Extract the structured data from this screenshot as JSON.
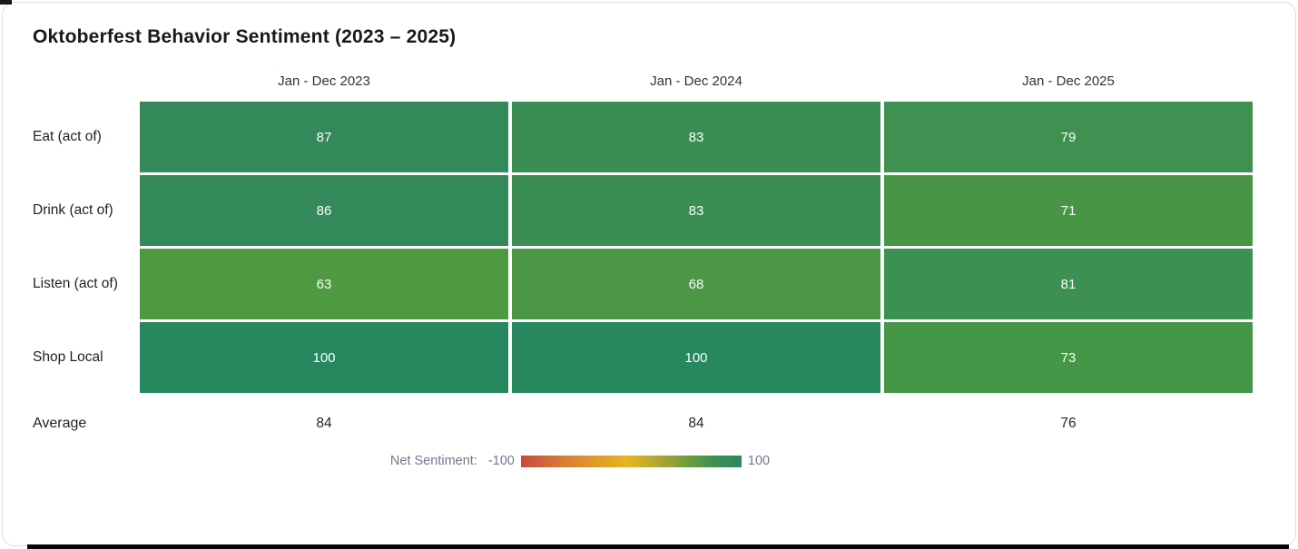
{
  "title": "Oktoberfest Behavior Sentiment (2023 – 2025)",
  "chart_data": {
    "type": "heatmap",
    "title": "Oktoberfest Behavior Sentiment (2023 – 2025)",
    "columns": [
      "Jan - Dec 2023",
      "Jan - Dec 2024",
      "Jan - Dec 2025"
    ],
    "rows": [
      {
        "label": "Eat (act of)",
        "values": [
          87,
          83,
          79
        ],
        "colors": [
          "#33895a",
          "#3a8e53",
          "#3e9150"
        ]
      },
      {
        "label": "Drink (act of)",
        "values": [
          86,
          83,
          71
        ],
        "colors": [
          "#34895a",
          "#3a8e53",
          "#489645"
        ]
      },
      {
        "label": "Listen (act of)",
        "values": [
          63,
          68,
          81
        ],
        "colors": [
          "#4f9a41",
          "#4b9745",
          "#3c9052"
        ]
      },
      {
        "label": "Shop Local",
        "values": [
          100,
          100,
          73
        ],
        "colors": [
          "#27885f",
          "#27885f",
          "#469647"
        ]
      }
    ],
    "summary_row": {
      "label": "Average",
      "values": [
        84,
        84,
        76
      ]
    },
    "value_range": [
      -100,
      100
    ],
    "cell_text_color": "#fbfdfb",
    "legend_position": "bottom"
  },
  "legend": {
    "label": "Net Sentiment:",
    "min_label": "-100",
    "max_label": "100",
    "gradient_colors": [
      "#c94a40",
      "#d5753a",
      "#df992d",
      "#e7b41f",
      "#b5a832",
      "#6f9e3d",
      "#3f9150",
      "#2b895e"
    ],
    "text_color": "#6e7a89"
  }
}
